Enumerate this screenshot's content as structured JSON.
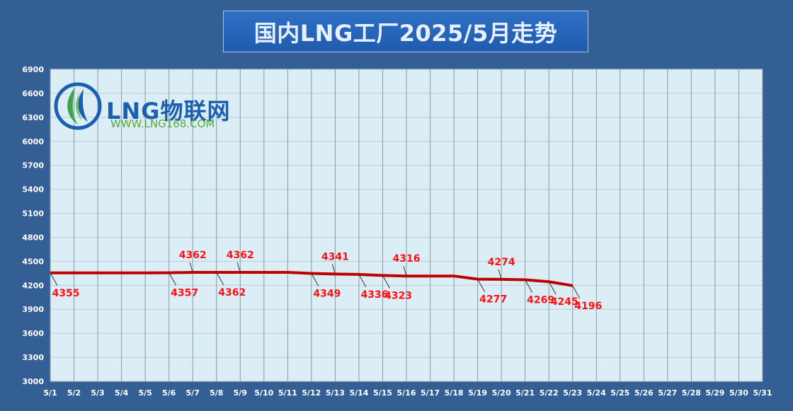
{
  "title": "国内LNG工厂2025/5月走势",
  "logo": {
    "name": "LNG物联网",
    "url": "WWW.LNG168.COM"
  },
  "colors": {
    "background": "#345f95",
    "plot": "#dceef5",
    "line": "#c00000",
    "label": "#ff1010"
  },
  "chart_data": {
    "type": "line",
    "categories": [
      "5/1",
      "5/2",
      "5/3",
      "5/4",
      "5/5",
      "5/6",
      "5/7",
      "5/8",
      "5/9",
      "5/10",
      "5/11",
      "5/12",
      "5/13",
      "5/14",
      "5/15",
      "5/16",
      "5/17",
      "5/18",
      "5/19",
      "5/20",
      "5/21",
      "5/22",
      "5/23",
      "5/24",
      "5/25",
      "5/26",
      "5/27",
      "5/28",
      "5/29",
      "5/30",
      "5/31"
    ],
    "values": [
      4355,
      4355,
      4355,
      4355,
      4355,
      4357,
      4362,
      4362,
      4362,
      4362,
      4362,
      4349,
      4341,
      4336,
      4323,
      4316,
      4316,
      4316,
      4277,
      4274,
      4269,
      4245,
      4196,
      null,
      null,
      null,
      null,
      null,
      null,
      null,
      null
    ],
    "yticks": [
      3000,
      3300,
      3600,
      3900,
      4200,
      4500,
      4800,
      5100,
      5400,
      5700,
      6000,
      6300,
      6600,
      6900
    ],
    "ylim": [
      3000,
      6900
    ],
    "grid": true,
    "labels": [
      {
        "index": 0,
        "text": "4355",
        "pos": "below"
      },
      {
        "index": 5,
        "text": "4357",
        "pos": "below"
      },
      {
        "index": 6,
        "text": "4362",
        "pos": "above"
      },
      {
        "index": 7,
        "text": "4362",
        "pos": "below"
      },
      {
        "index": 8,
        "text": "4362",
        "pos": "above"
      },
      {
        "index": 11,
        "text": "4349",
        "pos": "below"
      },
      {
        "index": 12,
        "text": "4341",
        "pos": "above"
      },
      {
        "index": 13,
        "text": "4336",
        "pos": "below"
      },
      {
        "index": 14,
        "text": "4323",
        "pos": "below"
      },
      {
        "index": 15,
        "text": "4316",
        "pos": "above"
      },
      {
        "index": 18,
        "text": "4277",
        "pos": "below"
      },
      {
        "index": 19,
        "text": "4274",
        "pos": "above"
      },
      {
        "index": 20,
        "text": "4269",
        "pos": "below"
      },
      {
        "index": 21,
        "text": "4245",
        "pos": "below"
      },
      {
        "index": 22,
        "text": "4196",
        "pos": "below"
      }
    ]
  }
}
